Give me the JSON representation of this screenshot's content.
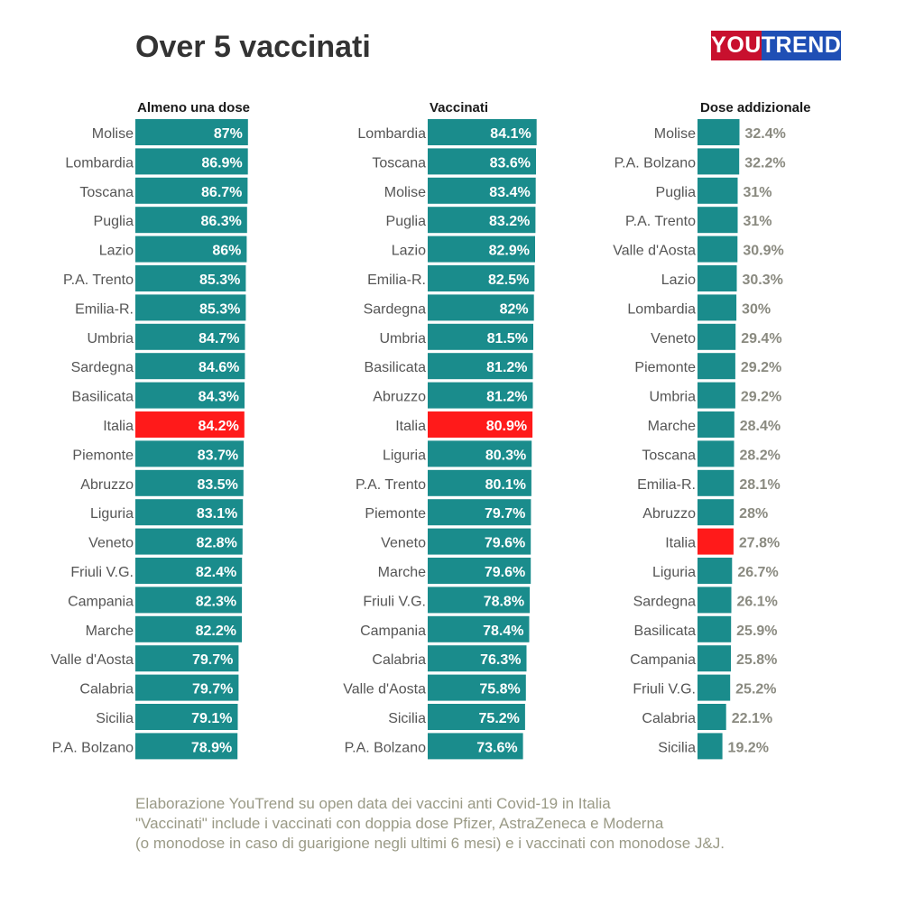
{
  "header": {
    "title": "Over 5 vaccinati",
    "logo_left": "YOU",
    "logo_right": "TREND"
  },
  "colors": {
    "bar": "#1a8c8c",
    "highlight": "#ff1a1a",
    "label_inside": "#ffffff",
    "label_outside": "#8a8a80",
    "region": "#555555",
    "heading": "#1a1a1a"
  },
  "chart_data": [
    {
      "type": "bar",
      "orientation": "horizontal",
      "title": "Almeno una dose",
      "highlight": "Italia",
      "label_position": "inside",
      "categories": [
        "Molise",
        "Lombardia",
        "Toscana",
        "Puglia",
        "Lazio",
        "P.A. Trento",
        "Emilia-R.",
        "Umbria",
        "Sardegna",
        "Basilicata",
        "Italia",
        "Piemonte",
        "Abruzzo",
        "Liguria",
        "Veneto",
        "Friuli V.G.",
        "Campania",
        "Marche",
        "Valle d'Aosta",
        "Calabria",
        "Sicilia",
        "P.A. Bolzano"
      ],
      "values": [
        87,
        86.9,
        86.7,
        86.3,
        86,
        85.3,
        85.3,
        84.7,
        84.6,
        84.3,
        84.2,
        83.7,
        83.5,
        83.1,
        82.8,
        82.4,
        82.3,
        82.2,
        79.7,
        79.7,
        79.1,
        78.9
      ],
      "labels": [
        "87%",
        "86.9%",
        "86.7%",
        "86.3%",
        "86%",
        "85.3%",
        "85.3%",
        "84.7%",
        "84.6%",
        "84.3%",
        "84.2%",
        "83.7%",
        "83.5%",
        "83.1%",
        "82.8%",
        "82.4%",
        "82.3%",
        "82.2%",
        "79.7%",
        "79.7%",
        "79.1%",
        "78.9%"
      ]
    },
    {
      "type": "bar",
      "orientation": "horizontal",
      "title": "Vaccinati",
      "highlight": "Italia",
      "label_position": "inside",
      "categories": [
        "Lombardia",
        "Toscana",
        "Molise",
        "Puglia",
        "Lazio",
        "Emilia-R.",
        "Sardegna",
        "Umbria",
        "Basilicata",
        "Abruzzo",
        "Italia",
        "Liguria",
        "P.A. Trento",
        "Piemonte",
        "Veneto",
        "Marche",
        "Friuli V.G.",
        "Campania",
        "Calabria",
        "Valle d'Aosta",
        "Sicilia",
        "P.A. Bolzano"
      ],
      "values": [
        84.1,
        83.6,
        83.4,
        83.2,
        82.9,
        82.5,
        82,
        81.5,
        81.2,
        81.2,
        80.9,
        80.3,
        80.1,
        79.7,
        79.6,
        79.6,
        78.8,
        78.4,
        76.3,
        75.8,
        75.2,
        73.6
      ],
      "labels": [
        "84.1%",
        "83.6%",
        "83.4%",
        "83.2%",
        "82.9%",
        "82.5%",
        "82%",
        "81.5%",
        "81.2%",
        "81.2%",
        "80.9%",
        "80.3%",
        "80.1%",
        "79.7%",
        "79.6%",
        "79.6%",
        "78.8%",
        "78.4%",
        "76.3%",
        "75.8%",
        "75.2%",
        "73.6%"
      ]
    },
    {
      "type": "bar",
      "orientation": "horizontal",
      "title": "Dose addizionale",
      "highlight": "Italia",
      "label_position": "outside",
      "categories": [
        "Molise",
        "P.A. Bolzano",
        "Puglia",
        "P.A. Trento",
        "Valle d'Aosta",
        "Lazio",
        "Lombardia",
        "Veneto",
        "Piemonte",
        "Umbria",
        "Marche",
        "Toscana",
        "Emilia-R.",
        "Abruzzo",
        "Italia",
        "Liguria",
        "Sardegna",
        "Basilicata",
        "Campania",
        "Friuli V.G.",
        "Calabria",
        "Sicilia"
      ],
      "values": [
        32.4,
        32.2,
        31,
        31,
        30.9,
        30.3,
        30,
        29.4,
        29.2,
        29.2,
        28.4,
        28.2,
        28.1,
        28,
        27.8,
        26.7,
        26.1,
        25.9,
        25.8,
        25.2,
        22.1,
        19.2
      ],
      "labels": [
        "32.4%",
        "32.2%",
        "31%",
        "31%",
        "30.9%",
        "30.3%",
        "30%",
        "29.4%",
        "29.2%",
        "29.2%",
        "28.4%",
        "28.2%",
        "28.1%",
        "28%",
        "27.8%",
        "26.7%",
        "26.1%",
        "25.9%",
        "25.8%",
        "25.2%",
        "22.1%",
        "19.2%"
      ]
    }
  ],
  "footnote": {
    "line1": "Elaborazione YouTrend su open data dei vaccini anti Covid-19 in Italia",
    "line2": "\"Vaccinati\" include i vaccinati con doppia dose Pfizer, AstraZeneca e Moderna",
    "line3": "(o monodose in caso di guarigione negli ultimi 6 mesi) e i vaccinati con monodose J&J."
  }
}
